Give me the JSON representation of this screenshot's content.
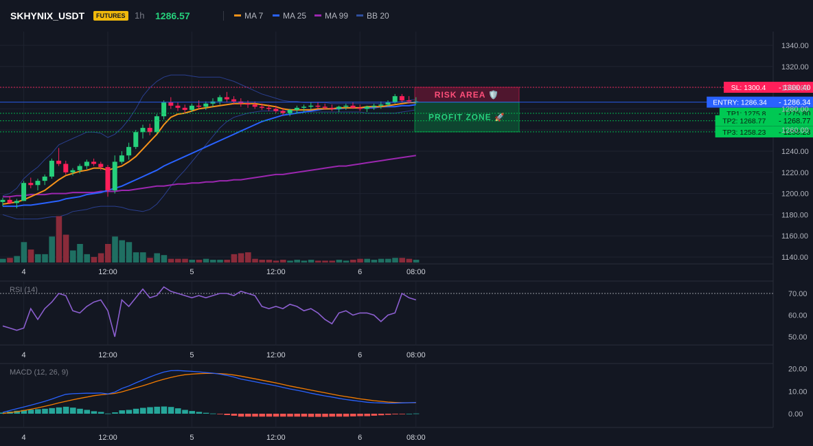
{
  "header": {
    "symbol": "SKHYNIX_USDT",
    "market_badge": "FUTURES",
    "timeframe": "1h",
    "last_price": "1286.57",
    "legend": [
      {
        "name": "MA 7",
        "color": "#f7931a"
      },
      {
        "name": "MA 25",
        "color": "#2962ff"
      },
      {
        "name": "MA 99",
        "color": "#9c27b0"
      },
      {
        "name": "BB 20",
        "color": "#1e3a8a"
      }
    ]
  },
  "colors": {
    "background": "#131722",
    "grid": "#1f2330",
    "up": "#26d07c",
    "down": "#ff1f5a",
    "vol_up": "#1f6f62",
    "vol_down": "#8a2b3a",
    "rsi_line": "#8c5fd0",
    "macd_line": "#2962ff",
    "signal_line": "#f57c00",
    "hist_pos": "#26a69a",
    "hist_neg": "#ef5350",
    "sl": "#ff1f5a",
    "entry": "#2962ff",
    "tp": "#00c853"
  },
  "chart_data": {
    "type": "line",
    "x_axis": {
      "tick_labels": [
        "4",
        "12:00",
        "5",
        "12:00",
        "6",
        "08:00"
      ],
      "tick_index": [
        3,
        15,
        27,
        39,
        51,
        59
      ]
    },
    "price_axis": {
      "ticks": [
        "1340.00",
        "1320.00",
        "1300.00",
        "1280.00",
        "1260.00",
        "1240.00",
        "1220.00",
        "1200.00",
        "1180.00",
        "1160.00",
        "1140.00"
      ],
      "range": [
        1140,
        1340
      ]
    },
    "candles": [
      [
        1192,
        1196,
        1188,
        1194
      ],
      [
        1194,
        1197,
        1190,
        1191
      ],
      [
        1191,
        1195,
        1186,
        1193
      ],
      [
        1193,
        1212,
        1193,
        1210
      ],
      [
        1210,
        1215,
        1205,
        1208
      ],
      [
        1208,
        1214,
        1203,
        1212
      ],
      [
        1212,
        1218,
        1208,
        1216
      ],
      [
        1216,
        1233,
        1214,
        1231
      ],
      [
        1231,
        1243,
        1226,
        1228
      ],
      [
        1228,
        1231,
        1218,
        1220
      ],
      [
        1220,
        1224,
        1217,
        1222
      ],
      [
        1222,
        1228,
        1219,
        1226
      ],
      [
        1226,
        1232,
        1223,
        1230
      ],
      [
        1230,
        1233,
        1226,
        1228
      ],
      [
        1228,
        1230,
        1222,
        1225
      ],
      [
        1225,
        1227,
        1197,
        1203
      ],
      [
        1203,
        1236,
        1200,
        1230
      ],
      [
        1230,
        1240,
        1228,
        1236
      ],
      [
        1236,
        1248,
        1232,
        1244
      ],
      [
        1244,
        1260,
        1242,
        1258
      ],
      [
        1258,
        1265,
        1252,
        1262
      ],
      [
        1262,
        1266,
        1255,
        1258
      ],
      [
        1258,
        1275,
        1256,
        1273
      ],
      [
        1273,
        1288,
        1270,
        1286
      ],
      [
        1286,
        1291,
        1280,
        1283
      ],
      [
        1283,
        1286,
        1278,
        1281
      ],
      [
        1281,
        1284,
        1276,
        1279
      ],
      [
        1279,
        1285,
        1277,
        1283
      ],
      [
        1283,
        1288,
        1280,
        1282
      ],
      [
        1282,
        1287,
        1279,
        1285
      ],
      [
        1285,
        1290,
        1282,
        1287
      ],
      [
        1287,
        1293,
        1284,
        1291
      ],
      [
        1291,
        1296,
        1286,
        1289
      ],
      [
        1289,
        1292,
        1284,
        1287
      ],
      [
        1287,
        1290,
        1282,
        1285
      ],
      [
        1285,
        1288,
        1281,
        1284
      ],
      [
        1284,
        1287,
        1280,
        1282
      ],
      [
        1282,
        1285,
        1279,
        1281
      ],
      [
        1281,
        1284,
        1278,
        1280
      ],
      [
        1280,
        1283,
        1276,
        1278
      ],
      [
        1278,
        1281,
        1274,
        1276
      ],
      [
        1276,
        1280,
        1273,
        1279
      ],
      [
        1279,
        1283,
        1276,
        1281
      ],
      [
        1281,
        1284,
        1277,
        1282
      ],
      [
        1282,
        1286,
        1279,
        1283
      ],
      [
        1283,
        1286,
        1280,
        1282
      ],
      [
        1282,
        1285,
        1279,
        1281
      ],
      [
        1281,
        1284,
        1278,
        1280
      ],
      [
        1280,
        1283,
        1277,
        1282
      ],
      [
        1282,
        1285,
        1279,
        1283
      ],
      [
        1283,
        1286,
        1280,
        1281
      ],
      [
        1281,
        1284,
        1278,
        1280
      ],
      [
        1280,
        1283,
        1277,
        1282
      ],
      [
        1282,
        1285,
        1279,
        1283
      ],
      [
        1283,
        1287,
        1280,
        1284
      ],
      [
        1284,
        1288,
        1282,
        1286
      ],
      [
        1286,
        1294,
        1285,
        1292
      ],
      [
        1292,
        1294,
        1286,
        1288
      ],
      [
        1288,
        1292,
        1285,
        1287
      ],
      [
        1287,
        1291,
        1285,
        1287
      ]
    ],
    "volumes": [
      4,
      5,
      7,
      22,
      14,
      9,
      9,
      28,
      50,
      30,
      13,
      20,
      9,
      6,
      10,
      20,
      28,
      24,
      22,
      11,
      11,
      5,
      10,
      8,
      4,
      4,
      4,
      3,
      3,
      4,
      3,
      3,
      3,
      9,
      10,
      11,
      4,
      3,
      3,
      2,
      3,
      2,
      3,
      2,
      3,
      2,
      2,
      2,
      3,
      2,
      3,
      4,
      4,
      3,
      4,
      4,
      5,
      5,
      4,
      3
    ],
    "ma7": [
      1190,
      1191,
      1192,
      1194,
      1197,
      1200,
      1203,
      1208,
      1213,
      1217,
      1219,
      1221,
      1222,
      1224,
      1224,
      1222,
      1224,
      1226,
      1230,
      1235,
      1242,
      1249,
      1256,
      1265,
      1272,
      1275,
      1276,
      1278,
      1280,
      1281,
      1282,
      1283,
      1284,
      1285,
      1285,
      1285,
      1285,
      1284,
      1283,
      1282,
      1280,
      1279,
      1279,
      1279,
      1279,
      1280,
      1280,
      1280,
      1281,
      1281,
      1281,
      1281,
      1282,
      1282,
      1282,
      1283,
      1284,
      1285,
      1286,
      1286
    ],
    "ma25": [
      1188,
      1188,
      1188,
      1189,
      1189,
      1190,
      1191,
      1192,
      1193,
      1195,
      1196,
      1197,
      1199,
      1200,
      1201,
      1203,
      1205,
      1207,
      1210,
      1213,
      1216,
      1219,
      1222,
      1226,
      1229,
      1232,
      1235,
      1238,
      1241,
      1244,
      1247,
      1250,
      1253,
      1256,
      1259,
      1262,
      1265,
      1268,
      1270,
      1272,
      1274,
      1275,
      1276,
      1277,
      1278,
      1279,
      1280,
      1280,
      1280,
      1281,
      1281,
      1281,
      1281,
      1281,
      1282,
      1282,
      1282,
      1283,
      1283,
      1284
    ],
    "ma99": [
      1197,
      1197,
      1198,
      1198,
      1199,
      1199,
      1199,
      1200,
      1200,
      1200,
      1201,
      1201,
      1201,
      1201,
      1202,
      1202,
      1202,
      1203,
      1203,
      1204,
      1205,
      1206,
      1207,
      1207,
      1208,
      1209,
      1209,
      1210,
      1210,
      1211,
      1211,
      1212,
      1212,
      1213,
      1213,
      1214,
      1215,
      1216,
      1217,
      1218,
      1218,
      1219,
      1220,
      1221,
      1222,
      1223,
      1224,
      1225,
      1226,
      1226,
      1227,
      1228,
      1229,
      1230,
      1231,
      1232,
      1233,
      1234,
      1235,
      1236
    ],
    "bb_upper": [
      1198,
      1200,
      1205,
      1214,
      1220,
      1225,
      1232,
      1238,
      1246,
      1249,
      1252,
      1255,
      1258,
      1258,
      1257,
      1253,
      1256,
      1262,
      1270,
      1280,
      1292,
      1300,
      1306,
      1310,
      1312,
      1312,
      1312,
      1311,
      1310,
      1310,
      1310,
      1310,
      1308,
      1306,
      1303,
      1300,
      1297,
      1294,
      1292,
      1290,
      1288,
      1287,
      1287,
      1286,
      1286,
      1286,
      1286,
      1285,
      1285,
      1285,
      1285,
      1285,
      1285,
      1285,
      1285,
      1285,
      1286,
      1287,
      1288,
      1289
    ],
    "bb_lower": [
      1180,
      1178,
      1176,
      1176,
      1176,
      1176,
      1177,
      1178,
      1178,
      1180,
      1183,
      1184,
      1185,
      1187,
      1188,
      1188,
      1188,
      1187,
      1185,
      1184,
      1183,
      1185,
      1190,
      1198,
      1207,
      1215,
      1222,
      1230,
      1238,
      1246,
      1254,
      1262,
      1268,
      1272,
      1274,
      1276,
      1277,
      1278,
      1278,
      1278,
      1278,
      1278,
      1277,
      1277,
      1277,
      1277,
      1277,
      1277,
      1277,
      1277,
      1277,
      1277,
      1276,
      1276,
      1276,
      1276,
      1276,
      1277,
      1278,
      1279
    ],
    "trade_levels": [
      {
        "label": "SL: 1300.4",
        "price": 1300.4,
        "axis_label": "1300.40",
        "kind": "sl"
      },
      {
        "label": "ENTRY: 1286.34",
        "price": 1286.34,
        "axis_label": "1286.34",
        "kind": "entry"
      },
      {
        "label": "TP1: 1275.8",
        "price": 1275.8,
        "axis_label": "1275.80",
        "kind": "tp"
      },
      {
        "label": "TP2: 1268.77",
        "price": 1268.77,
        "axis_label": "1268.77",
        "kind": "tp"
      },
      {
        "label": "TP3: 1258.23",
        "price": 1258.23,
        "axis_label": "1258.23",
        "kind": "tp"
      }
    ],
    "zones": {
      "risk": {
        "label": "RISK AREA 🛡️",
        "from": 1286.34,
        "to": 1300.4
      },
      "profit": {
        "label": "PROFIT ZONE 🚀",
        "from": 1258.23,
        "to": 1286.34
      }
    },
    "rsi": {
      "title": "RSI (14)",
      "ticks": [
        "70.00",
        "60.00",
        "50.00"
      ],
      "overbought": 70,
      "values": [
        55,
        54,
        53,
        54,
        63,
        58,
        63,
        66,
        70,
        69,
        62,
        61,
        64,
        66,
        67,
        62,
        50,
        67,
        64,
        68,
        72,
        68,
        69,
        73,
        71,
        70,
        69,
        68,
        69,
        68,
        69,
        70,
        70,
        69,
        71,
        70,
        69,
        64,
        63,
        64,
        63,
        65,
        64,
        62,
        63,
        61,
        58,
        56,
        61,
        62,
        60,
        61,
        61,
        60,
        57,
        60,
        61,
        70,
        68,
        67
      ]
    },
    "macd": {
      "title": "MACD (12, 26, 9)",
      "ticks": [
        "20.00",
        "10.00",
        "0.00"
      ],
      "macd_line": [
        0.6,
        1.4,
        2.2,
        3.0,
        3.8,
        4.6,
        5.5,
        6.5,
        7.6,
        8.6,
        8.9,
        9.0,
        9.1,
        9.1,
        9.2,
        8.8,
        9.6,
        11.2,
        12.3,
        13.7,
        15.0,
        16.3,
        17.5,
        18.5,
        19.1,
        19.2,
        19.0,
        18.8,
        18.6,
        18.3,
        18.0,
        17.6,
        17.0,
        16.3,
        15.4,
        14.8,
        14.2,
        13.6,
        13.0,
        12.4,
        11.7,
        11.0,
        10.4,
        9.8,
        9.1,
        8.5,
        7.9,
        7.4,
        6.8,
        6.3,
        5.9,
        5.5,
        5.1,
        4.9,
        4.8,
        4.7,
        4.7,
        4.8,
        4.9,
        5.0
      ],
      "signal_line": [
        0.1,
        0.5,
        0.9,
        1.4,
        2.0,
        2.6,
        3.3,
        4.0,
        4.8,
        5.5,
        6.2,
        6.8,
        7.4,
        8.0,
        8.4,
        8.7,
        9.0,
        9.7,
        10.6,
        11.5,
        12.4,
        13.4,
        14.4,
        15.3,
        16.1,
        16.8,
        17.3,
        17.6,
        17.8,
        17.9,
        17.9,
        17.8,
        17.6,
        17.2,
        16.7,
        16.1,
        15.5,
        14.9,
        14.3,
        13.7,
        13.0,
        12.3,
        11.7,
        11.1,
        10.5,
        9.9,
        9.3,
        8.7,
        8.1,
        7.6,
        7.1,
        6.6,
        6.2,
        5.8,
        5.5,
        5.2,
        5.0,
        4.9,
        4.9,
        4.9
      ],
      "histogram": [
        0.5,
        0.9,
        1.3,
        1.6,
        1.8,
        2.0,
        2.2,
        2.5,
        2.8,
        3.1,
        2.7,
        2.2,
        1.7,
        1.1,
        0.8,
        0.1,
        0.6,
        1.5,
        1.7,
        2.2,
        2.6,
        2.9,
        3.1,
        3.2,
        3.0,
        2.4,
        1.7,
        1.2,
        0.8,
        0.4,
        0.1,
        -0.2,
        -0.6,
        -0.9,
        -1.3,
        -1.3,
        -1.3,
        -1.3,
        -1.3,
        -1.3,
        -1.3,
        -1.3,
        -1.3,
        -1.3,
        -1.4,
        -1.4,
        -1.4,
        -1.3,
        -1.3,
        -1.3,
        -1.2,
        -1.1,
        -1.1,
        -0.9,
        -0.7,
        -0.5,
        -0.3,
        -0.1,
        0.0,
        0.1
      ]
    }
  }
}
